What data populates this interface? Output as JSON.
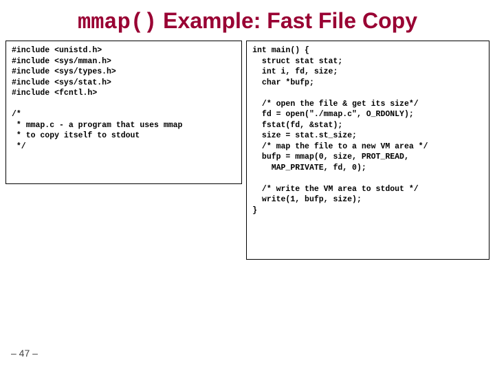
{
  "title_prefix": "mmap()",
  "title_rest": " Example: Fast File Copy",
  "left_code": "#include <unistd.h>\n#include <sys/mman.h>\n#include <sys/types.h>\n#include <sys/stat.h>\n#include <fcntl.h>\n\n/*\n * mmap.c - a program that uses mmap\n * to copy itself to stdout\n */",
  "right_code": "int main() {\n  struct stat stat;\n  int i, fd, size;\n  char *bufp;\n\n  /* open the file & get its size*/\n  fd = open(\"./mmap.c\", O_RDONLY);\n  fstat(fd, &stat);\n  size = stat.st_size;\n  /* map the file to a new VM area */\n  bufp = mmap(0, size, PROT_READ,\n    MAP_PRIVATE, fd, 0);\n\n  /* write the VM area to stdout */\n  write(1, bufp, size);\n}",
  "page_number": "– 47 –",
  "colors": {
    "title": "#990033",
    "border": "#000000",
    "background": "#ffffff"
  }
}
